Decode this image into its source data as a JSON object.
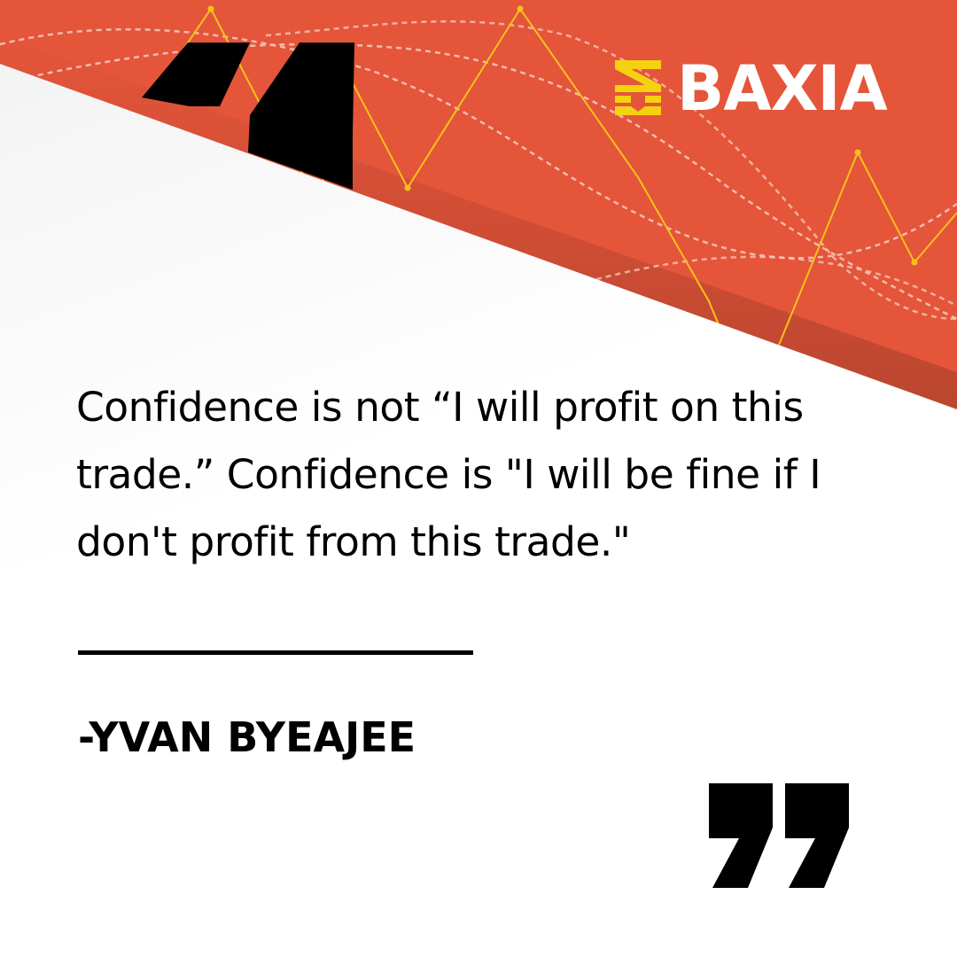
{
  "brand": {
    "name": "BAXIA",
    "accent_color": "#E4553A",
    "logo_icon_color": "#F5D20F"
  },
  "quote": {
    "text": "Confidence is not “I will profit on this trade.” Confidence is \"I will be fine if I don't profit from this trade.\"",
    "author": "-YVAN BYEAJEE"
  },
  "icons": {
    "open_quote": "open-quote-mark-icon",
    "close_quote": "close-quote-mark-icon",
    "logo": "baxia-logo-icon"
  }
}
